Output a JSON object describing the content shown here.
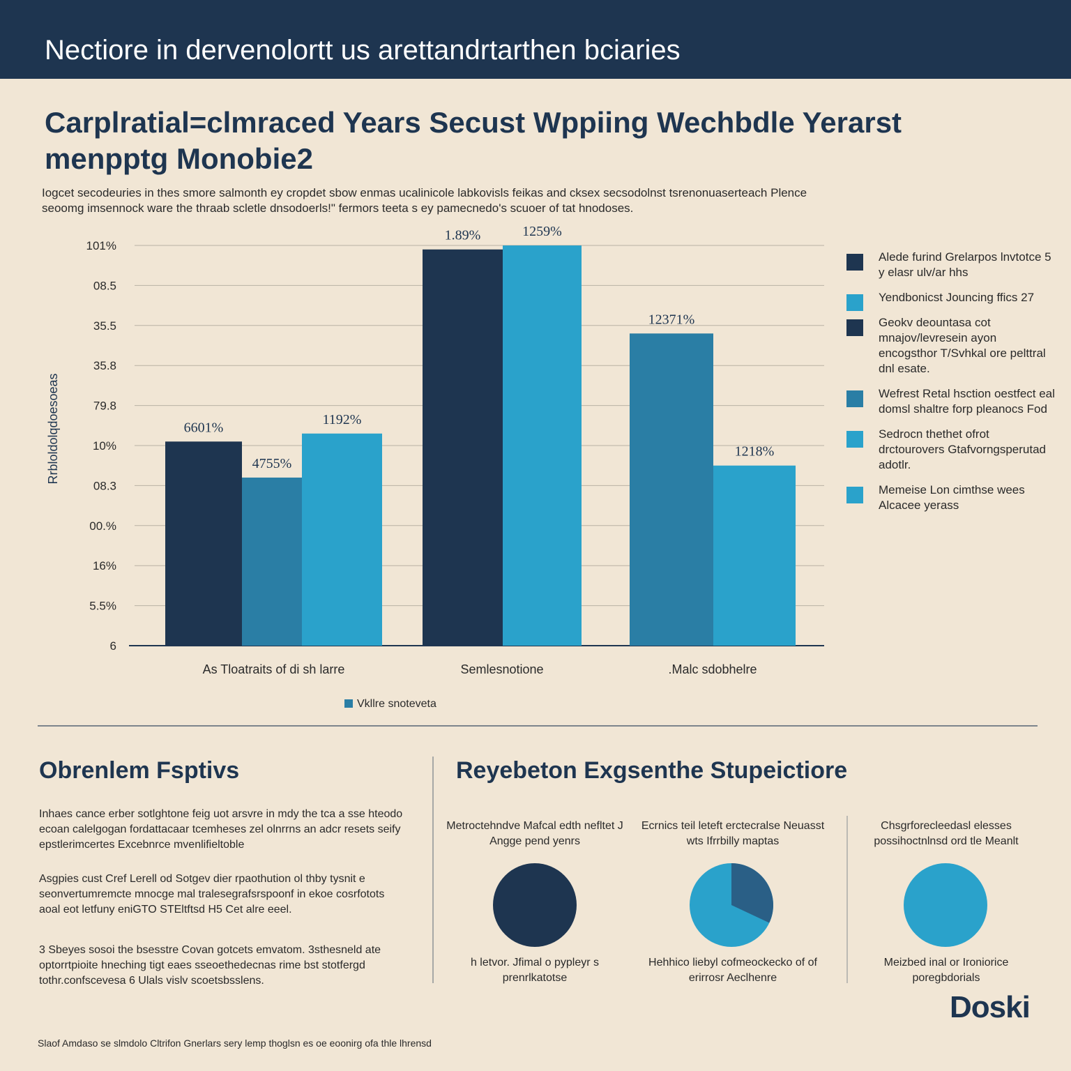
{
  "colors": {
    "navy": "#1e3550",
    "teal": "#2a7ea5",
    "sky": "#2aa2cb",
    "background": "#f1e6d5"
  },
  "header": {
    "banner_title": "Nectiore in dervenolortt us arettandrtarthen bciaries",
    "main_title": "Carplratial=clmraced Years Secust Wppiing Wechbdle Yerarst menpptg Monobie2",
    "subtitle_line1": "Iogcet secodeuries in thes smore salmonth ey cropdet sbow enmas ucalinicole labkovisls feikas and cksex secsodolnst tsrenonuaserteach Plence",
    "subtitle_line2": "seoomg imsennock ware the thraab scletle dnsodoerls!\" fermors teeta s ey pamecnedo's scuoer of tat hnodoses."
  },
  "chart_data": {
    "type": "bar",
    "title": "Carplratial=clmraced Years Secust Wppiing Wechbdle Yerarst menpptg Monobie2",
    "ylabel": "Rrbloldolqdoesoeas",
    "yticks": [
      "101%",
      "08.5",
      "35.5",
      "35.8",
      "79.8",
      "10%",
      "08.3",
      "00.%",
      "16%",
      "5.5%",
      "6"
    ],
    "ylim": [
      0,
      100
    ],
    "groups": [
      {
        "category": "As Tloatraits of di sh larre",
        "bars": [
          {
            "value": 51,
            "label": "6601%",
            "color": "#1e3550"
          },
          {
            "value": 42,
            "label": "4755%",
            "color": "#2a7ea5"
          },
          {
            "value": 53,
            "label": "1192%",
            "color": "#2aa2cb"
          }
        ]
      },
      {
        "category": "Semlesnotione",
        "bars": [
          {
            "value": 99,
            "label": "1.89%",
            "color": "#1e3550"
          },
          {
            "value": 100,
            "label": "1259%",
            "color": "#2aa2cb"
          }
        ]
      },
      {
        "category": ".Malc sdobhelre",
        "bars": [
          {
            "value": 78,
            "label": "12371%",
            "color": "#2a7ea5"
          },
          {
            "value": 45,
            "label": "1218%",
            "color": "#2aa2cb"
          }
        ]
      }
    ],
    "legend_position": "right",
    "grid": true
  },
  "legend": [
    {
      "label": "Alede furind Grelarpos lnvtotce 5 y elasr ulv/ar hhs",
      "color": "#1e3550"
    },
    {
      "label": "Yendbonicst Jouncing ffics 27",
      "color": "#2aa2cb"
    },
    {
      "label": "Geokv deountasa cot mnajov/levresein ayon encogsthor T/Svhkal ore pelttral dnl esate.",
      "color": "#1e3550"
    },
    {
      "label": "Wefrest Retal hsction oestfect eal domsl shaltre forp pleanocs Fod",
      "color": "#2a7ea5"
    },
    {
      "label": "Sedrocn thethet ofrot drctourovers Gtafvorngsperutad adotlr.",
      "color": "#2aa2cb"
    },
    {
      "label": "Memeise Lon cimthse wees Alcacee yerass",
      "color": "#2aa2cb"
    }
  ],
  "footer_legend": "Vkllre snoteveta",
  "left_section": {
    "heading": "Obrenlem Fsptivs",
    "para1": "Inhaes cance erber sotlghtone feig uot arsvre in mdy the tca a sse hteodo ecoan calelgogan fordattacaar tcemheses zel olnrrns an adcr resets seify epstlerimcertes Excebnrce mvenlifieltoble",
    "para2": "Asgpies cust Cref Lerell od Sotgev dier rpaothution ol thby tysnit e seonvertumremcte mnocge mal tralesegrafsrspoonf in ekoe cosrfotots aoal eot letfuny eniGTO STEltftsd H5 Cet alre eeel.",
    "para3": "3 Sbeyes sosoi the bsesstre Covan gotcets emvatom. 3sthesneld ate optorrtpioite hneching tigt eaes sseoethedecnas rime bst stotfergd tothr.confscevesa 6 Ulals vislv scoetsbsslens."
  },
  "right_section": {
    "heading": "Reyebeton Exgsenthe Stupeictiore",
    "cards": [
      {
        "top": "Metroctehndve Mafcal edth nefltet J Angge pend yenrs",
        "bottom": "h letvor. Jfimal o pypleyr s prenrlkatotse",
        "pie": {
          "type": "full",
          "value": 100,
          "color": "#1e3550"
        }
      },
      {
        "top": "Ecrnics teil leteft erctecralse Neuasst wts Ifrrbilly maptas",
        "bottom": "Hehhico liebyl cofmeockecko of of erirrosr Aeclhenre",
        "pie": {
          "type": "split",
          "value": 68,
          "color": "#2aa2cb",
          "second_color": "#2a5f86"
        }
      },
      {
        "top": "Chsgrforecleedasl elesses possihoctnlnsd ord tle Meanlt",
        "bottom": "Meizbed inal or Ironiorice poregbdorials",
        "pie": {
          "type": "full",
          "value": 100,
          "color": "#2aa2cb"
        }
      }
    ]
  },
  "footer": {
    "note": "Slaof Amdaso se slmdolo Cltrifon Gnerlars sery lemp thoglsn es oe eoonirg ofa thle lhrensd",
    "logo": "Doski"
  }
}
